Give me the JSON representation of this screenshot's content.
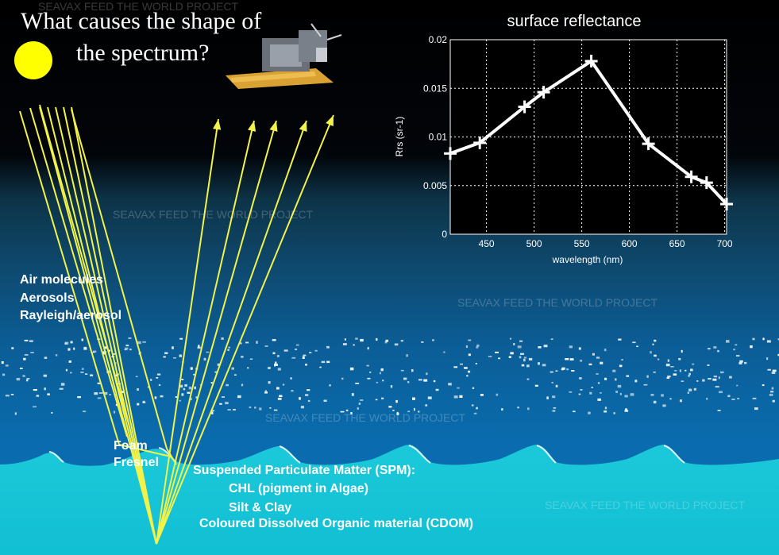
{
  "title_line1": "What causes the shape of",
  "title_line2": "the spectrum?",
  "watermark": "SEAVAX FEED THE WORLD PROJECT",
  "labels": {
    "air_molecules": "Air molecules",
    "aerosols": "Aerosols",
    "rayleigh_aerosol": "Rayleigh/aerosol",
    "foam": "Foam",
    "fresnel": "Fresnel",
    "spm": "Suspended Particulate Matter (SPM):",
    "chl": "CHL (pigment in Algae)",
    "silt_clay": "Silt & Clay",
    "cdom": "Coloured Dissolved Organic material (CDOM)"
  },
  "colors": {
    "ray": "#f2f24a",
    "sun": "#ffff00",
    "sea_deep": "#0a6fb0",
    "sea_shallow": "#1ec8d8"
  },
  "chart_data": {
    "type": "line",
    "title": "surface reflectance",
    "xlabel": "wavelength (nm)",
    "ylabel": "Rrs (sr-1)",
    "xlim": [
      412,
      702
    ],
    "ylim": [
      0,
      0.02
    ],
    "xticks": [
      450,
      500,
      550,
      600,
      650,
      700
    ],
    "yticks": [
      0,
      0.005,
      0.01,
      0.015,
      0.02
    ],
    "ytick_labels": [
      "0",
      "0.005",
      "0.01",
      "0.015",
      "0.02"
    ],
    "grid": true,
    "series": [
      {
        "x": [
          412,
          443,
          490,
          510,
          560,
          620,
          665,
          681,
          702
        ],
        "y": [
          0.0083,
          0.0094,
          0.0131,
          0.0146,
          0.0178,
          0.0093,
          0.0059,
          0.0053,
          0.0031
        ],
        "color": "#ffffff"
      }
    ]
  }
}
